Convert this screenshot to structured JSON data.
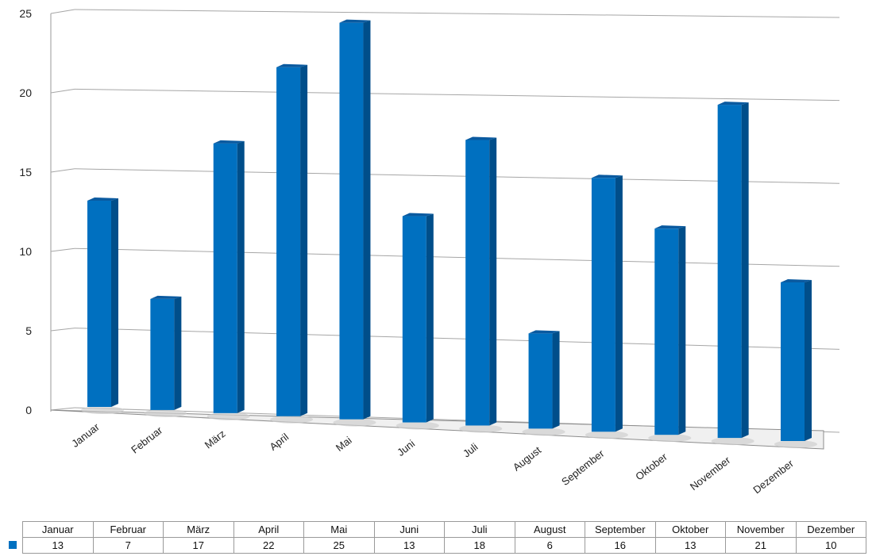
{
  "chart_data": {
    "type": "bar",
    "style": "3d-column",
    "categories": [
      "Januar",
      "Februar",
      "März",
      "April",
      "Mai",
      "Juni",
      "Juli",
      "August",
      "September",
      "Oktober",
      "November",
      "Dezember"
    ],
    "series": [
      {
        "values": [
          13,
          7,
          17,
          22,
          25,
          13,
          18,
          6,
          16,
          13,
          21,
          10
        ],
        "color": "#0070c0"
      }
    ],
    "y_ticks": [
      "0",
      "5",
      "10",
      "15",
      "20",
      "25"
    ],
    "ylim": [
      0,
      25
    ],
    "grid": true,
    "data_table": true
  }
}
